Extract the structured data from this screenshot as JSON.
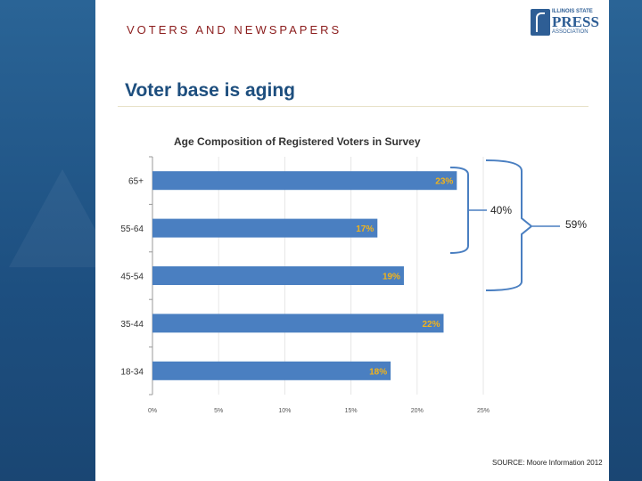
{
  "header": {
    "kicker": "VOTERS AND NEWSPAPERS",
    "title": "Voter base is aging"
  },
  "logo": {
    "line1": "ILLINOIS STATE",
    "line2": "PRESS",
    "line3": "ASSOCIATION"
  },
  "chart_data": {
    "type": "bar",
    "orientation": "horizontal",
    "title": "Age Composition of Registered Voters in Survey",
    "categories": [
      "65+",
      "55-64",
      "45-54",
      "35-44",
      "18-34"
    ],
    "values": [
      23,
      17,
      19,
      22,
      18
    ],
    "value_labels": [
      "23%",
      "17%",
      "19%",
      "22%",
      "18%"
    ],
    "xlim": [
      0,
      25
    ],
    "xticks": [
      "0%",
      "5%",
      "10%",
      "15%",
      "20%",
      "25%"
    ],
    "bar_color": "#4a7fc1",
    "label_color": "#f2b31a",
    "grid": true
  },
  "annotations": {
    "bracket_small": "40%",
    "bracket_large": "59%",
    "color": "#4a7fc1"
  },
  "source": "SOURCE: Moore Information 2012"
}
